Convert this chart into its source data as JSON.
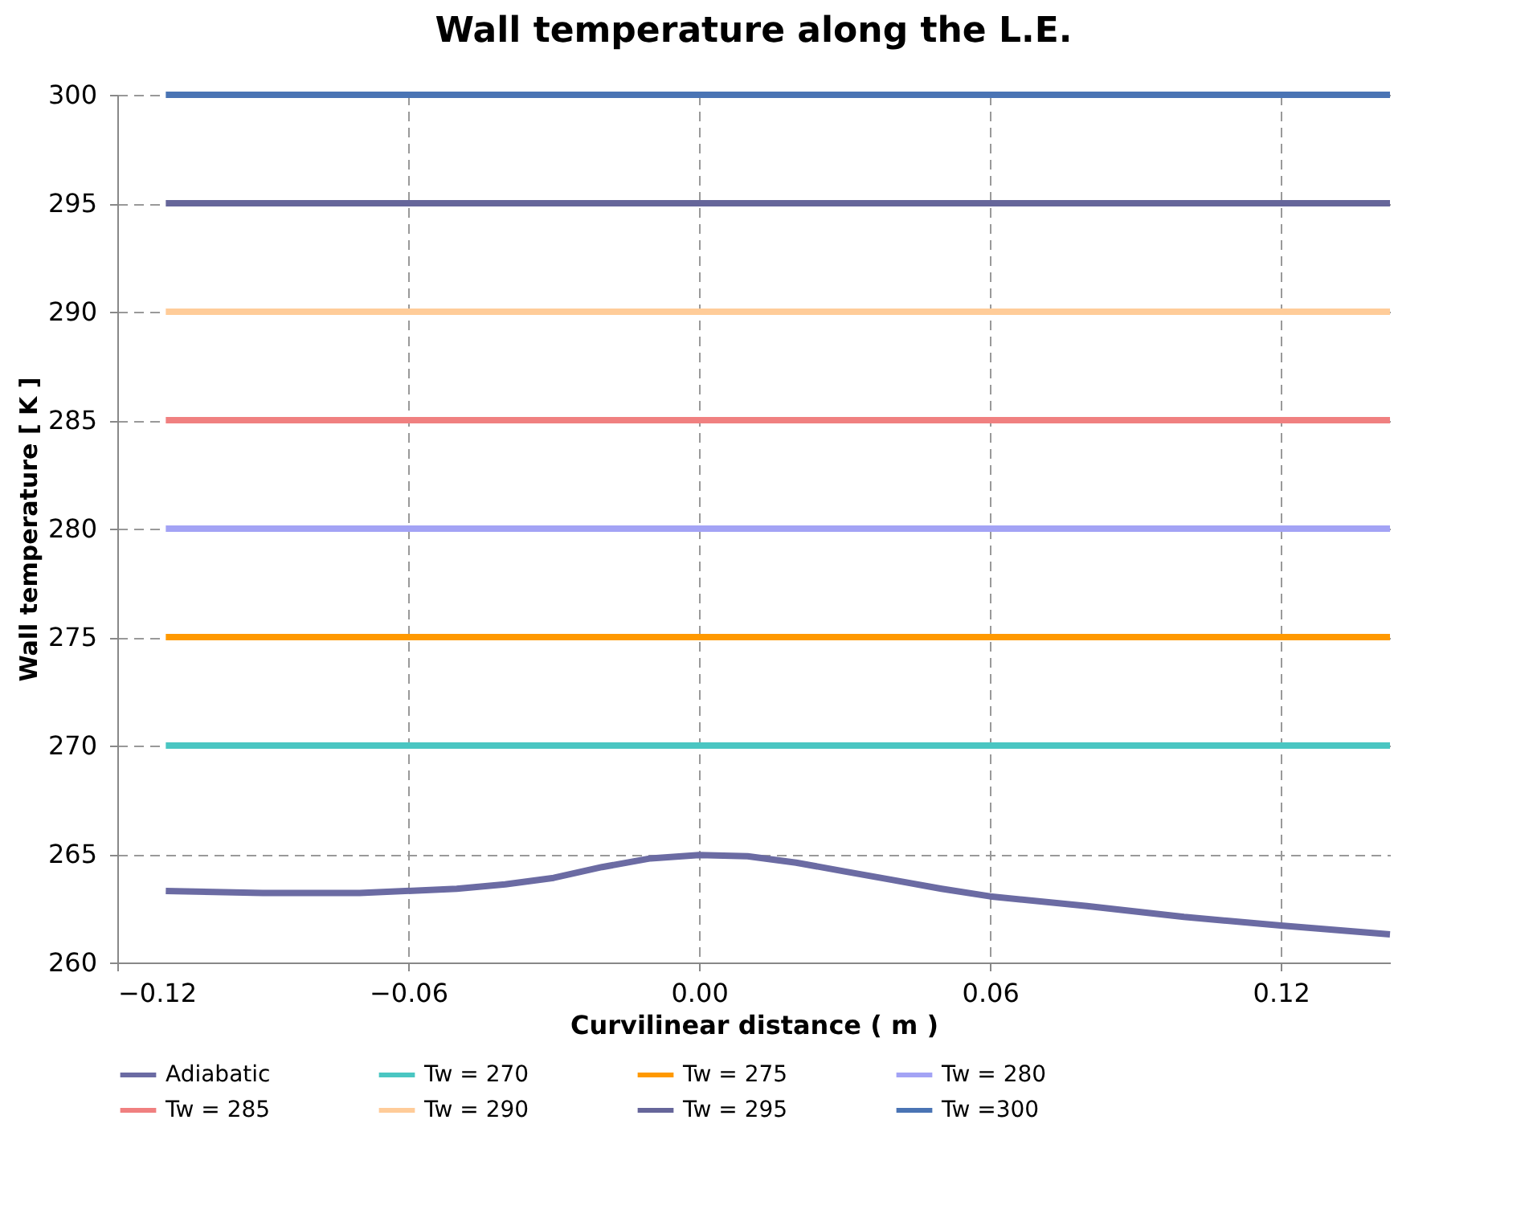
{
  "chart_data": {
    "type": "line",
    "title": "Wall temperature along the L.E.",
    "xlabel": "Curvilinear distance ( m )",
    "ylabel": "Wall temperature [ K ]",
    "xlim": [
      -0.12,
      0.1425
    ],
    "xticks": [
      -0.12,
      -0.06,
      {
        "value": 0,
        "label": "0.00"
      },
      0.06,
      0.12
    ],
    "ylim": [
      260,
      300
    ],
    "yticks": [
      260,
      265,
      270,
      275,
      280,
      285,
      290,
      295,
      300
    ],
    "grid": true,
    "legend": "bottom",
    "marker": "none",
    "line_style": "solid",
    "series": [
      {
        "name": "Adiabatic",
        "color": "#6b6ba3",
        "x": [
          -0.11,
          -0.09,
          -0.07,
          -0.05,
          -0.04,
          -0.03,
          -0.02,
          -0.01,
          0,
          0.01,
          0.02,
          0.03,
          0.04,
          0.05,
          0.06,
          0.08,
          0.1,
          0.12,
          0.1425
        ],
        "values": [
          263.3,
          263.2,
          263.2,
          263.4,
          263.6,
          263.9,
          264.4,
          264.8,
          264.95,
          264.9,
          264.6,
          264.2,
          263.8,
          263.4,
          263.05,
          262.6,
          262.1,
          261.7,
          261.3
        ]
      },
      {
        "name": "Tw = 270",
        "color": "#4ac6c2",
        "x": [
          -0.11,
          0.1425
        ],
        "values": [
          270,
          270
        ]
      },
      {
        "name": "Tw = 275",
        "color": "#ff9900",
        "x": [
          -0.11,
          0.1425
        ],
        "values": [
          275,
          275
        ]
      },
      {
        "name": "Tw = 280",
        "color": "#a3a3f5",
        "x": [
          -0.11,
          0.1425
        ],
        "values": [
          280,
          280
        ]
      },
      {
        "name": "Tw = 285",
        "color": "#f08080",
        "x": [
          -0.11,
          0.1425
        ],
        "values": [
          285,
          285
        ]
      },
      {
        "name": "Tw = 290",
        "color": "#ffcc99",
        "x": [
          -0.11,
          0.1425
        ],
        "values": [
          290,
          290
        ]
      },
      {
        "name": "Tw = 295",
        "color": "#66669a",
        "x": [
          -0.11,
          0.1425
        ],
        "values": [
          295,
          295
        ]
      },
      {
        "name": "Tw =300",
        "color": "#4a74b4",
        "x": [
          -0.11,
          0.1425
        ],
        "values": [
          300,
          300
        ]
      }
    ]
  }
}
